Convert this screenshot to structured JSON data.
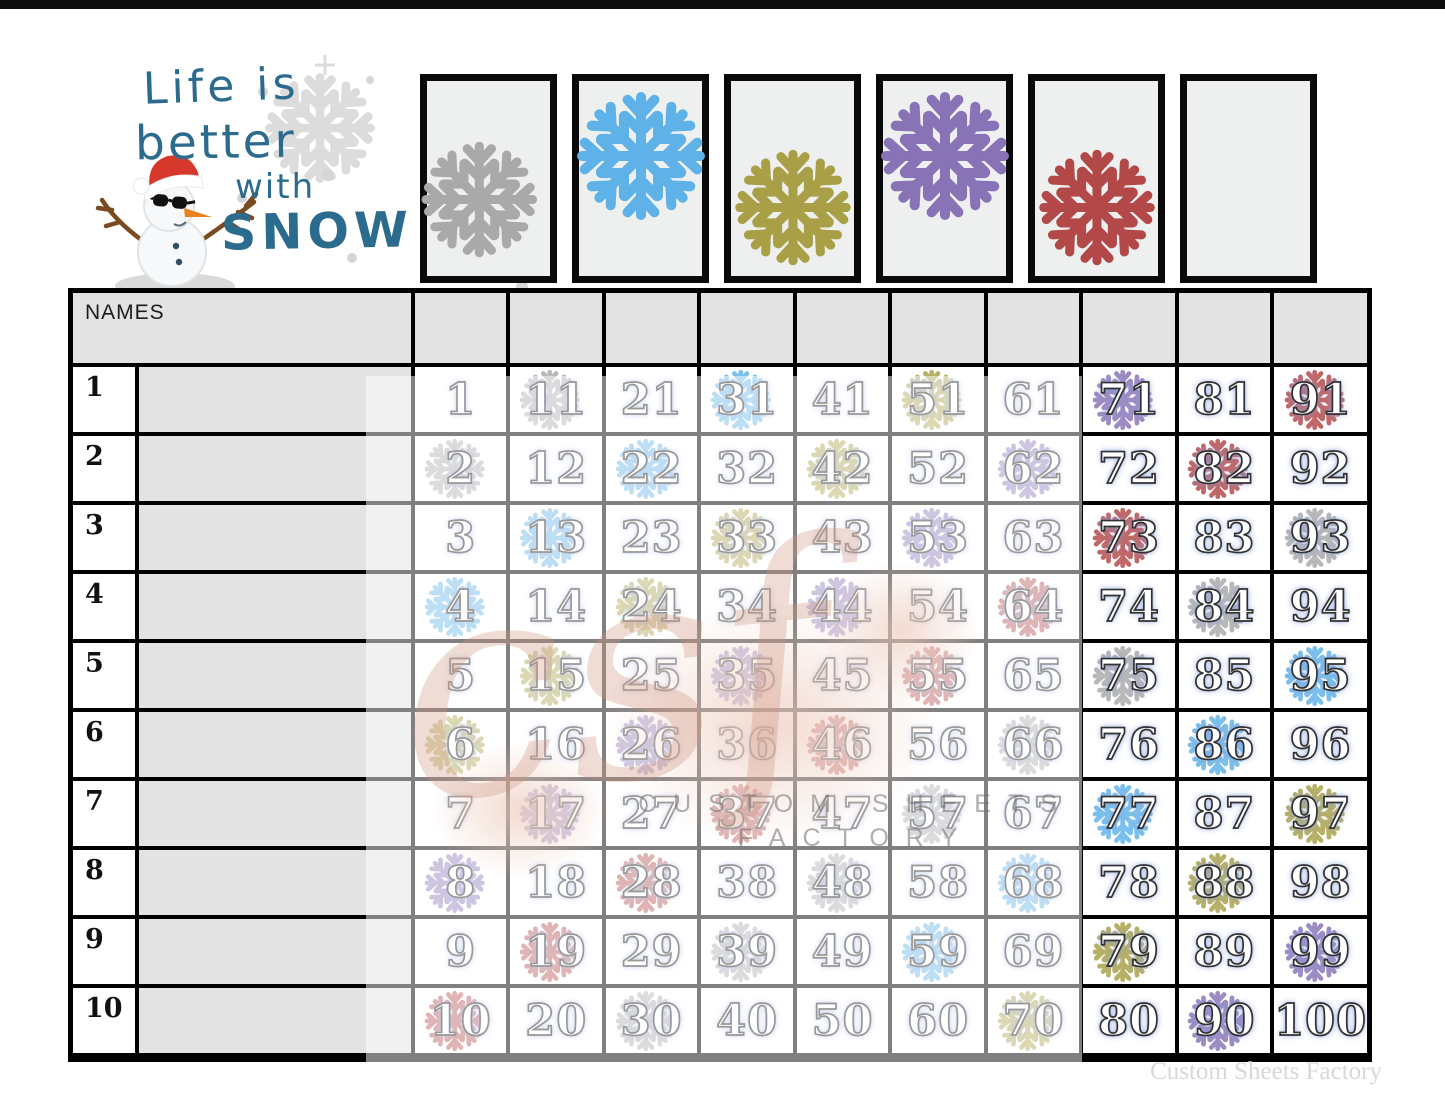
{
  "title": {
    "lines": [
      "Life is",
      "better",
      "with",
      "SNOW"
    ]
  },
  "colors": {
    "title": "#2b6b8e",
    "board_line": "#000000",
    "header_fill": "#e3e3e3",
    "flakes": {
      "gray": "#a9a9a9",
      "blue": "#5fb2e8",
      "olive": "#a89f46",
      "purple": "#8873b6",
      "red": "#b34848"
    }
  },
  "header_boxes": [
    {
      "flake": "gray",
      "position": "bottom"
    },
    {
      "flake": "blue",
      "position": "top"
    },
    {
      "flake": "olive",
      "position": "bottom"
    },
    {
      "flake": "purple",
      "position": "top"
    },
    {
      "flake": "red",
      "position": "bottom"
    },
    {
      "flake": null,
      "position": "none"
    }
  ],
  "board": {
    "names_header": "NAMES",
    "rows": [
      {
        "label": "1",
        "cells": [
          {
            "n": "1"
          },
          {
            "n": "11",
            "flake": "gray"
          },
          {
            "n": "21"
          },
          {
            "n": "31",
            "flake": "blue"
          },
          {
            "n": "41"
          },
          {
            "n": "51",
            "flake": "olive"
          },
          {
            "n": "61"
          },
          {
            "n": "71",
            "flake": "purple"
          },
          {
            "n": "81"
          },
          {
            "n": "91",
            "flake": "red"
          }
        ]
      },
      {
        "label": "2",
        "cells": [
          {
            "n": "2",
            "flake": "gray"
          },
          {
            "n": "12"
          },
          {
            "n": "22",
            "flake": "blue"
          },
          {
            "n": "32"
          },
          {
            "n": "42",
            "flake": "olive"
          },
          {
            "n": "52"
          },
          {
            "n": "62",
            "flake": "purple"
          },
          {
            "n": "72"
          },
          {
            "n": "82",
            "flake": "red"
          },
          {
            "n": "92"
          }
        ]
      },
      {
        "label": "3",
        "cells": [
          {
            "n": "3"
          },
          {
            "n": "13",
            "flake": "blue"
          },
          {
            "n": "23"
          },
          {
            "n": "33",
            "flake": "olive"
          },
          {
            "n": "43"
          },
          {
            "n": "53",
            "flake": "purple"
          },
          {
            "n": "63"
          },
          {
            "n": "73",
            "flake": "red"
          },
          {
            "n": "83"
          },
          {
            "n": "93",
            "flake": "gray"
          }
        ]
      },
      {
        "label": "4",
        "cells": [
          {
            "n": "4",
            "flake": "blue"
          },
          {
            "n": "14"
          },
          {
            "n": "24",
            "flake": "olive"
          },
          {
            "n": "34"
          },
          {
            "n": "44",
            "flake": "purple"
          },
          {
            "n": "54"
          },
          {
            "n": "64",
            "flake": "red"
          },
          {
            "n": "74"
          },
          {
            "n": "84",
            "flake": "gray"
          },
          {
            "n": "94"
          }
        ]
      },
      {
        "label": "5",
        "cells": [
          {
            "n": "5"
          },
          {
            "n": "15",
            "flake": "olive"
          },
          {
            "n": "25"
          },
          {
            "n": "35",
            "flake": "purple"
          },
          {
            "n": "45"
          },
          {
            "n": "55",
            "flake": "red"
          },
          {
            "n": "65"
          },
          {
            "n": "75",
            "flake": "gray"
          },
          {
            "n": "85"
          },
          {
            "n": "95",
            "flake": "blue"
          }
        ]
      },
      {
        "label": "6",
        "cells": [
          {
            "n": "6",
            "flake": "olive"
          },
          {
            "n": "16"
          },
          {
            "n": "26",
            "flake": "purple"
          },
          {
            "n": "36"
          },
          {
            "n": "46",
            "flake": "red"
          },
          {
            "n": "56"
          },
          {
            "n": "66",
            "flake": "gray"
          },
          {
            "n": "76"
          },
          {
            "n": "86",
            "flake": "blue"
          },
          {
            "n": "96"
          }
        ]
      },
      {
        "label": "7",
        "cells": [
          {
            "n": "7"
          },
          {
            "n": "17",
            "flake": "purple"
          },
          {
            "n": "27"
          },
          {
            "n": "37",
            "flake": "red"
          },
          {
            "n": "47"
          },
          {
            "n": "57",
            "flake": "gray"
          },
          {
            "n": "67"
          },
          {
            "n": "77",
            "flake": "blue"
          },
          {
            "n": "87"
          },
          {
            "n": "97",
            "flake": "olive"
          }
        ]
      },
      {
        "label": "8",
        "cells": [
          {
            "n": "8",
            "flake": "purple"
          },
          {
            "n": "18"
          },
          {
            "n": "28",
            "flake": "red"
          },
          {
            "n": "38"
          },
          {
            "n": "48",
            "flake": "gray"
          },
          {
            "n": "58"
          },
          {
            "n": "68",
            "flake": "blue"
          },
          {
            "n": "78"
          },
          {
            "n": "88",
            "flake": "olive"
          },
          {
            "n": "98"
          }
        ]
      },
      {
        "label": "9",
        "cells": [
          {
            "n": "9"
          },
          {
            "n": "19",
            "flake": "red"
          },
          {
            "n": "29"
          },
          {
            "n": "39",
            "flake": "gray"
          },
          {
            "n": "49"
          },
          {
            "n": "59",
            "flake": "blue"
          },
          {
            "n": "69"
          },
          {
            "n": "79",
            "flake": "olive"
          },
          {
            "n": "89"
          },
          {
            "n": "99",
            "flake": "purple"
          }
        ]
      },
      {
        "label": "10",
        "cells": [
          {
            "n": "10",
            "flake": "red"
          },
          {
            "n": "20"
          },
          {
            "n": "30",
            "flake": "gray"
          },
          {
            "n": "40"
          },
          {
            "n": "50"
          },
          {
            "n": "60"
          },
          {
            "n": "70",
            "flake": "olive"
          },
          {
            "n": "80"
          },
          {
            "n": "90",
            "flake": "purple"
          },
          {
            "n": "100"
          }
        ]
      }
    ]
  },
  "watermark": {
    "script": "csf",
    "caps_line1": "CUSTOM SHEETS",
    "caps_line2": "FACTORY"
  },
  "footer": {
    "credit": "Custom Sheets Factory"
  }
}
